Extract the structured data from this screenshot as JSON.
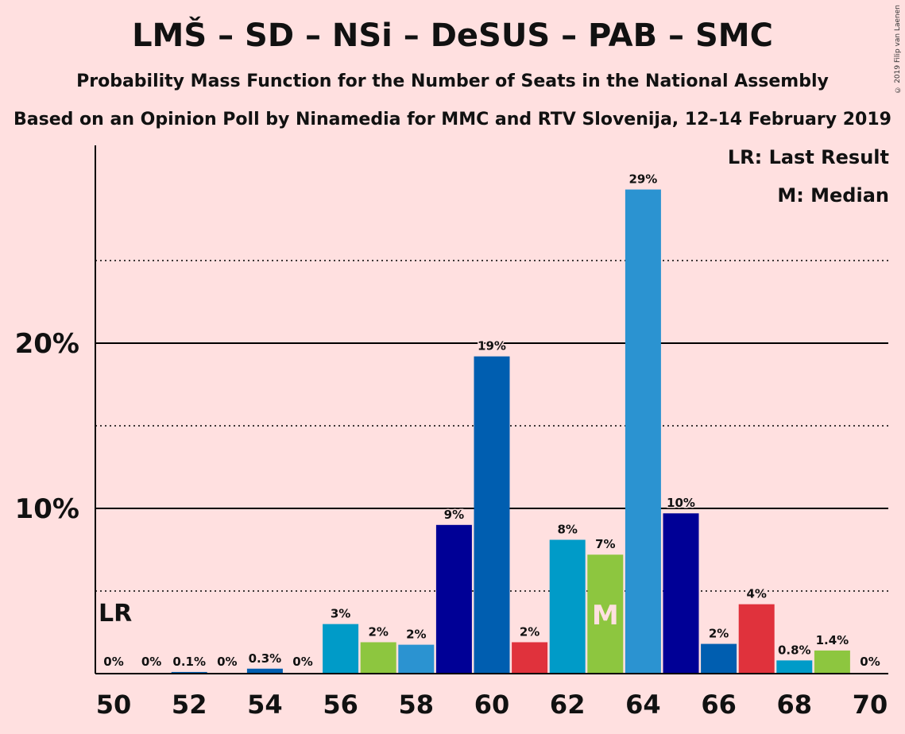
{
  "title": "LMŠ – SD – NSi – DeSUS – PAB – SMC",
  "subtitle": "Probability Mass Function for the Number of Seats in the National Assembly",
  "subtitle2": "Based on an Opinion Poll by Ninamedia for MMC and RTV Slovenija, 12–14 February 2019",
  "copyright": "© 2019 Filip van Laenen",
  "legend": {
    "lr": "LR: Last Result",
    "median": "M: Median"
  },
  "chart_data": {
    "type": "bar",
    "x": [
      50,
      51,
      52,
      53,
      54,
      55,
      56,
      57,
      58,
      59,
      60,
      61,
      62,
      63,
      64,
      65,
      66,
      67,
      68,
      69,
      70
    ],
    "values": [
      0,
      0,
      0.1,
      0,
      0.3,
      0,
      3.0,
      1.9,
      1.75,
      9.0,
      19.2,
      1.9,
      8.1,
      7.2,
      29.3,
      9.7,
      1.8,
      4.2,
      0.8,
      1.4,
      0
    ],
    "labels": [
      "0%",
      "0%",
      "0.1%",
      "0%",
      "0.3%",
      "0%",
      "3%",
      "2%",
      "2%",
      "9%",
      "19%",
      "2%",
      "8%",
      "7%",
      "29%",
      "10%",
      "2%",
      "4%",
      "0.8%",
      "1.4%",
      "0%"
    ],
    "colors": [
      "#005eb0",
      "#e0323c",
      "#005eb0",
      "#e0323c",
      "#005eb0",
      "#e0323c",
      "#009bc8",
      "#8dc63f",
      "#2b93d1",
      "#000096",
      "#005eb0",
      "#e0323c",
      "#009bc8",
      "#8dc63f",
      "#2b93d1",
      "#000096",
      "#005eb0",
      "#e0323c",
      "#009bc8",
      "#8dc63f",
      "#2b93d1"
    ],
    "x_tick_labels": [
      "50",
      "52",
      "54",
      "56",
      "58",
      "60",
      "62",
      "64",
      "66",
      "68",
      "70"
    ],
    "y_tick_labels": [
      "10%",
      "20%"
    ],
    "y_solid_gridlines": [
      10,
      20
    ],
    "y_dotted_gridlines": [
      5,
      15,
      25
    ],
    "ylim": [
      0,
      32
    ],
    "last_result_seat": 50,
    "last_result_label": "LR",
    "median_seat": 63,
    "median_label": "M"
  }
}
